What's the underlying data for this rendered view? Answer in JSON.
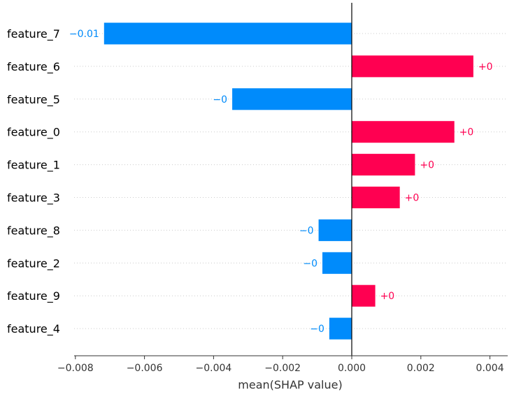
{
  "chart_data": {
    "type": "bar",
    "orientation": "horizontal",
    "categories": [
      "feature_7",
      "feature_6",
      "feature_5",
      "feature_0",
      "feature_1",
      "feature_3",
      "feature_8",
      "feature_2",
      "feature_9",
      "feature_4"
    ],
    "values": [
      -0.00717,
      0.00352,
      -0.00346,
      0.00297,
      0.00183,
      0.00139,
      -0.00096,
      -0.00085,
      0.00068,
      -0.00065
    ],
    "value_labels": [
      "−0.01",
      "+0",
      "−0",
      "+0",
      "+0",
      "+0",
      "−0",
      "−0",
      "+0",
      "−0"
    ],
    "xlabel": "mean(SHAP value)",
    "xlim": [
      -0.0082,
      0.0046
    ],
    "xticks": [
      -0.008,
      -0.006,
      -0.004,
      -0.002,
      0.0,
      0.002,
      0.004
    ],
    "xtick_labels": [
      "−0.008",
      "−0.006",
      "−0.004",
      "−0.002",
      "0.000",
      "0.002",
      "0.004"
    ],
    "colors": {
      "positive": "#ff0051",
      "negative": "#008bfb",
      "zero_line": "#000000",
      "gridline": "#cccccc"
    },
    "grid": "horizontal-dotted"
  }
}
